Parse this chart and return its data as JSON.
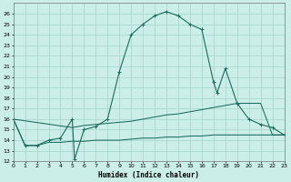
{
  "xlabel": "Humidex (Indice chaleur)",
  "xlim": [
    0,
    23
  ],
  "ylim": [
    12,
    27
  ],
  "yticks": [
    12,
    13,
    14,
    15,
    16,
    17,
    18,
    19,
    20,
    21,
    22,
    23,
    24,
    25,
    26
  ],
  "xticks": [
    0,
    1,
    2,
    3,
    4,
    5,
    6,
    7,
    8,
    9,
    10,
    11,
    12,
    13,
    14,
    15,
    16,
    17,
    18,
    19,
    20,
    21,
    22,
    23
  ],
  "bg_color": "#cceee8",
  "grid_color": "#aad8d0",
  "line_color": "#1a6b5e",
  "line1_x": [
    0,
    1,
    2,
    3,
    4,
    5,
    5.2,
    6,
    7,
    8,
    9,
    10,
    11,
    12,
    13,
    14,
    15,
    16,
    17,
    17.3,
    18,
    19,
    20,
    21,
    22,
    23
  ],
  "line1_y": [
    16.0,
    13.5,
    13.5,
    14.0,
    14.2,
    16.0,
    12.2,
    15.0,
    15.3,
    16.0,
    20.5,
    24.0,
    25.0,
    25.8,
    26.2,
    25.8,
    25.0,
    24.5,
    19.5,
    18.5,
    20.8,
    17.5,
    16.0,
    15.5,
    15.2,
    14.5
  ],
  "line2_x": [
    0,
    5,
    6,
    7,
    8,
    9,
    10,
    11,
    12,
    13,
    14,
    15,
    16,
    17,
    18,
    19,
    20,
    21,
    22,
    23
  ],
  "line2_y": [
    16.0,
    15.2,
    15.4,
    15.5,
    15.6,
    15.7,
    15.8,
    16.0,
    16.2,
    16.4,
    16.5,
    16.7,
    16.9,
    17.1,
    17.3,
    17.5,
    17.5,
    17.5,
    14.5,
    14.5
  ],
  "line3_x": [
    0,
    1,
    2,
    3,
    4,
    5,
    6,
    7,
    8,
    9,
    10,
    11,
    12,
    13,
    14,
    15,
    16,
    17,
    18,
    19,
    20,
    21,
    22,
    23
  ],
  "line3_y": [
    16.0,
    13.5,
    13.5,
    13.8,
    13.8,
    13.9,
    13.9,
    14.0,
    14.0,
    14.0,
    14.1,
    14.2,
    14.2,
    14.3,
    14.3,
    14.4,
    14.4,
    14.5,
    14.5,
    14.5,
    14.5,
    14.5,
    14.5,
    14.5
  ]
}
